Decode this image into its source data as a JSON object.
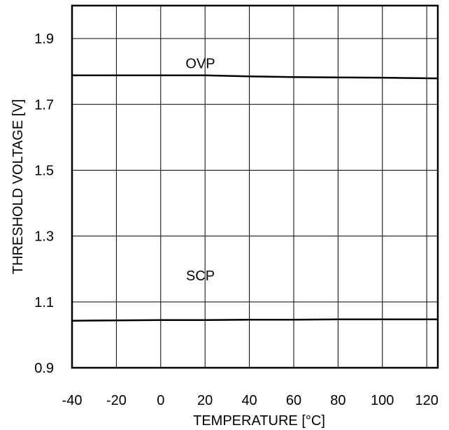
{
  "chart_data": {
    "type": "line",
    "title": "",
    "xlabel": "TEMPERATURE [°C]",
    "ylabel": "THRESHOLD VOLTAGE [V]",
    "xlim": [
      -40,
      125
    ],
    "ylim": [
      0.9,
      2.0
    ],
    "xticks": [
      -40,
      -20,
      0,
      20,
      40,
      60,
      80,
      100,
      120
    ],
    "xtick_labels": [
      "-40",
      "-20",
      "0",
      "20",
      "40",
      "60",
      "80",
      "100",
      "120"
    ],
    "yticks": [
      0.9,
      1.1,
      1.3,
      1.5,
      1.7,
      1.9
    ],
    "ytick_labels": [
      "0.9",
      "1.1",
      "1.3",
      "1.5",
      "1.7",
      "1.9"
    ],
    "grid": true,
    "series": [
      {
        "name": "OVP",
        "x": [
          -40,
          -20,
          0,
          20,
          40,
          60,
          80,
          100,
          125
        ],
        "y": [
          1.788,
          1.788,
          1.788,
          1.788,
          1.785,
          1.783,
          1.782,
          1.781,
          1.779
        ]
      },
      {
        "name": "SCP",
        "x": [
          -40,
          -20,
          0,
          20,
          40,
          60,
          80,
          100,
          125
        ],
        "y": [
          1.043,
          1.044,
          1.045,
          1.045,
          1.046,
          1.046,
          1.047,
          1.047,
          1.047
        ]
      }
    ],
    "annotations": [
      {
        "text": "OVP",
        "series": "OVP",
        "x": 16,
        "y": 1.81
      },
      {
        "text": "SCP",
        "series": "SCP",
        "x": 16,
        "y": 1.165
      }
    ]
  }
}
